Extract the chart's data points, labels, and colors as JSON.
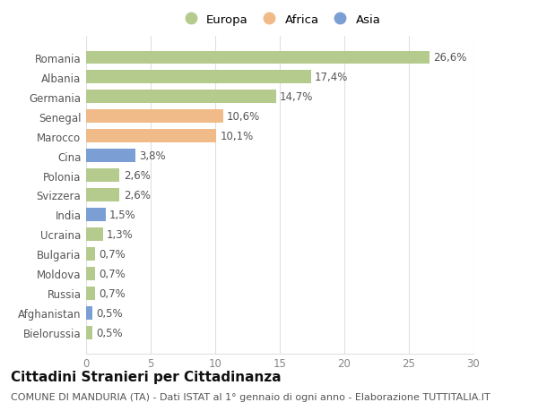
{
  "categories": [
    "Bielorussia",
    "Afghanistan",
    "Russia",
    "Moldova",
    "Bulgaria",
    "Ucraina",
    "India",
    "Svizzera",
    "Polonia",
    "Cina",
    "Marocco",
    "Senegal",
    "Germania",
    "Albania",
    "Romania"
  ],
  "values": [
    0.5,
    0.5,
    0.7,
    0.7,
    0.7,
    1.3,
    1.5,
    2.6,
    2.6,
    3.8,
    10.1,
    10.6,
    14.7,
    17.4,
    26.6
  ],
  "labels": [
    "0,5%",
    "0,5%",
    "0,7%",
    "0,7%",
    "0,7%",
    "1,3%",
    "1,5%",
    "2,6%",
    "2,6%",
    "3,8%",
    "10,1%",
    "10,6%",
    "14,7%",
    "17,4%",
    "26,6%"
  ],
  "colors": [
    "#b5ca8d",
    "#7b9fd4",
    "#b5ca8d",
    "#b5ca8d",
    "#b5ca8d",
    "#b5ca8d",
    "#7b9fd4",
    "#b5ca8d",
    "#b5ca8d",
    "#7b9fd4",
    "#f0bb88",
    "#f0bb88",
    "#b5ca8d",
    "#b5ca8d",
    "#b5ca8d"
  ],
  "legend_labels": [
    "Europa",
    "Africa",
    "Asia"
  ],
  "legend_colors": [
    "#b5ca8d",
    "#f0bb88",
    "#7b9fd4"
  ],
  "xlim": [
    0,
    30
  ],
  "xticks": [
    0,
    5,
    10,
    15,
    20,
    25,
    30
  ],
  "title": "Cittadini Stranieri per Cittadinanza",
  "subtitle": "COMUNE DI MANDURIA (TA) - Dati ISTAT al 1° gennaio di ogni anno - Elaborazione TUTTITALIA.IT",
  "bg_color": "#ffffff",
  "grid_color": "#e0e0e0",
  "bar_height": 0.65,
  "label_fontsize": 8.5,
  "title_fontsize": 11,
  "subtitle_fontsize": 8,
  "tick_fontsize": 8.5,
  "legend_fontsize": 9.5
}
